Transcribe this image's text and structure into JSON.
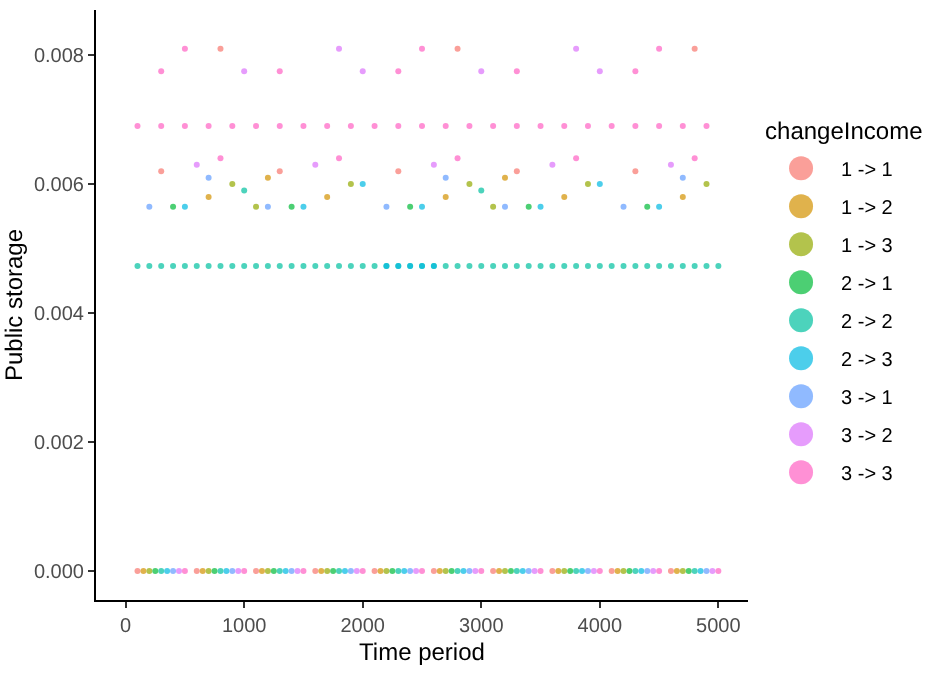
{
  "chart_data": {
    "type": "scatter",
    "xlabel": "Time period",
    "ylabel": "Public storage",
    "legend_title": "changeIncome",
    "xlim": [
      -250,
      5250
    ],
    "xticks": [
      0,
      1000,
      2000,
      3000,
      4000,
      5000
    ],
    "ylim": [
      -0.00045,
      0.0087
    ],
    "yticks": [
      {
        "value": 0,
        "label": "0.000"
      },
      {
        "value": 0.002,
        "label": "0.002"
      },
      {
        "value": 0.004,
        "label": "0.004"
      },
      {
        "value": 0.006,
        "label": "0.006"
      },
      {
        "value": 0.008,
        "label": "0.008"
      }
    ],
    "grid": false,
    "legend": "right",
    "marker": "circle",
    "series": [
      {
        "name": "1 -> 1",
        "color": "#f8766d",
        "x": [
          100,
          600,
          1100,
          1600,
          2100,
          2600,
          3100,
          3600,
          4100,
          4600,
          300,
          1300,
          2300,
          3300,
          4300,
          800,
          2800,
          4800
        ],
        "values": [
          0,
          0,
          0,
          0,
          0,
          0,
          0,
          0,
          0,
          0,
          0.0062,
          0.0062,
          0.0062,
          0.0062,
          0.0062,
          0.0081,
          0.0081,
          0.0081
        ]
      },
      {
        "name": "1 -> 2",
        "color": "#d39200",
        "x": [
          150,
          650,
          1150,
          1650,
          2150,
          2650,
          3150,
          3650,
          4150,
          4650,
          700,
          1700,
          2700,
          3700,
          4700,
          1200,
          3200
        ],
        "values": [
          0,
          0,
          0,
          0,
          0,
          0,
          0,
          0,
          0,
          0,
          0.0058,
          0.0058,
          0.0058,
          0.0058,
          0.0058,
          0.0061,
          0.0061
        ]
      },
      {
        "name": "1 -> 3",
        "color": "#93aa00",
        "x": [
          200,
          700,
          1200,
          1700,
          2200,
          2700,
          3200,
          3700,
          4200,
          4700,
          900,
          1900,
          2900,
          3900,
          4900,
          1100,
          3100
        ],
        "values": [
          0,
          0,
          0,
          0,
          0,
          0,
          0,
          0,
          0,
          0,
          0.006,
          0.006,
          0.006,
          0.006,
          0.006,
          0.00565,
          0.00565
        ]
      },
      {
        "name": "2 -> 1",
        "color": "#00ba38",
        "x": [
          250,
          750,
          1250,
          1750,
          2250,
          2750,
          3250,
          3750,
          4250,
          4750,
          400,
          1400,
          2400,
          3400,
          4400
        ],
        "values": [
          0,
          0,
          0,
          0,
          0,
          0,
          0,
          0,
          0,
          0,
          0.00565,
          0.00565,
          0.00565,
          0.00565,
          0.00565
        ]
      },
      {
        "name": "2 -> 2",
        "color": "#00c19f",
        "x": [
          300,
          800,
          1300,
          1800,
          2300,
          2800,
          3300,
          3800,
          4300,
          4800,
          100,
          200,
          300,
          400,
          500,
          600,
          700,
          800,
          900,
          1000,
          1100,
          1200,
          1300,
          1400,
          1500,
          1600,
          1700,
          1800,
          1900,
          2000,
          2100,
          2200,
          2300,
          2400,
          2500,
          2600,
          2700,
          2800,
          2900,
          3000,
          3100,
          3200,
          3300,
          3400,
          3500,
          3600,
          3700,
          3800,
          3900,
          4000,
          4100,
          4200,
          4300,
          4400,
          4500,
          4600,
          4700,
          4800,
          4900,
          5000,
          1000,
          3000
        ],
        "values": [
          0,
          0,
          0,
          0,
          0,
          0,
          0,
          0,
          0,
          0,
          0.00473,
          0.00473,
          0.00473,
          0.00473,
          0.00473,
          0.00473,
          0.00473,
          0.00473,
          0.00473,
          0.00473,
          0.00473,
          0.00473,
          0.00473,
          0.00473,
          0.00473,
          0.00473,
          0.00473,
          0.00473,
          0.00473,
          0.00473,
          0.00473,
          0.00473,
          0.00473,
          0.00473,
          0.00473,
          0.00473,
          0.00473,
          0.00473,
          0.00473,
          0.00473,
          0.00473,
          0.00473,
          0.00473,
          0.00473,
          0.00473,
          0.00473,
          0.00473,
          0.00473,
          0.00473,
          0.00473,
          0.00473,
          0.00473,
          0.00473,
          0.00473,
          0.00473,
          0.00473,
          0.00473,
          0.00473,
          0.00473,
          0.00473,
          0.0059,
          0.0059
        ]
      },
      {
        "name": "2 -> 3",
        "color": "#00b9e3",
        "x": [
          350,
          850,
          1350,
          1850,
          2350,
          2850,
          3350,
          3850,
          4350,
          4850,
          2200,
          2300,
          2400,
          2500,
          2600,
          500,
          1500,
          2500,
          3500,
          4500,
          2000,
          4000
        ],
        "values": [
          0,
          0,
          0,
          0,
          0,
          0,
          0,
          0,
          0,
          0,
          0.00473,
          0.00473,
          0.00473,
          0.00473,
          0.00473,
          0.00565,
          0.00565,
          0.00565,
          0.00565,
          0.00565,
          0.006,
          0.006
        ]
      },
      {
        "name": "3 -> 1",
        "color": "#619cff",
        "x": [
          400,
          900,
          1400,
          1900,
          2400,
          2900,
          3400,
          3900,
          4400,
          4900,
          200,
          1200,
          2200,
          3200,
          4200,
          700,
          2700,
          4700
        ],
        "values": [
          0,
          0,
          0,
          0,
          0,
          0,
          0,
          0,
          0,
          0,
          0.00565,
          0.00565,
          0.00565,
          0.00565,
          0.00565,
          0.0061,
          0.0061,
          0.0061
        ]
      },
      {
        "name": "3 -> 2",
        "color": "#db72fb",
        "x": [
          450,
          950,
          1450,
          1950,
          2450,
          2950,
          3450,
          3950,
          4450,
          4950,
          600,
          1600,
          2600,
          3600,
          4600,
          1000,
          2000,
          3000,
          4000,
          1800,
          3800
        ],
        "values": [
          0,
          0,
          0,
          0,
          0,
          0,
          0,
          0,
          0,
          0,
          0.0063,
          0.0063,
          0.0063,
          0.0063,
          0.0063,
          0.00775,
          0.00775,
          0.00775,
          0.00775,
          0.0081,
          0.0081
        ]
      },
      {
        "name": "3 -> 3",
        "color": "#ff61c3",
        "x": [
          500,
          1000,
          1500,
          2000,
          2500,
          3000,
          3500,
          4000,
          4500,
          5000,
          100,
          300,
          500,
          700,
          900,
          1100,
          1300,
          1500,
          1700,
          1900,
          2100,
          2300,
          2500,
          2700,
          2900,
          3100,
          3300,
          3500,
          3700,
          3900,
          4100,
          4300,
          4500,
          4700,
          4900,
          800,
          1800,
          2800,
          3800,
          4800,
          300,
          1300,
          2300,
          3300,
          4300,
          500,
          2500,
          4500
        ],
        "values": [
          0,
          0,
          0,
          0,
          0,
          0,
          0,
          0,
          0,
          0,
          0.0069,
          0.0069,
          0.0069,
          0.0069,
          0.0069,
          0.0069,
          0.0069,
          0.0069,
          0.0069,
          0.0069,
          0.0069,
          0.0069,
          0.0069,
          0.0069,
          0.0069,
          0.0069,
          0.0069,
          0.0069,
          0.0069,
          0.0069,
          0.0069,
          0.0069,
          0.0069,
          0.0069,
          0.0069,
          0.0064,
          0.0064,
          0.0064,
          0.0064,
          0.0064,
          0.00775,
          0.00775,
          0.00775,
          0.00775,
          0.00775,
          0.0081,
          0.0081,
          0.0081
        ]
      }
    ]
  }
}
